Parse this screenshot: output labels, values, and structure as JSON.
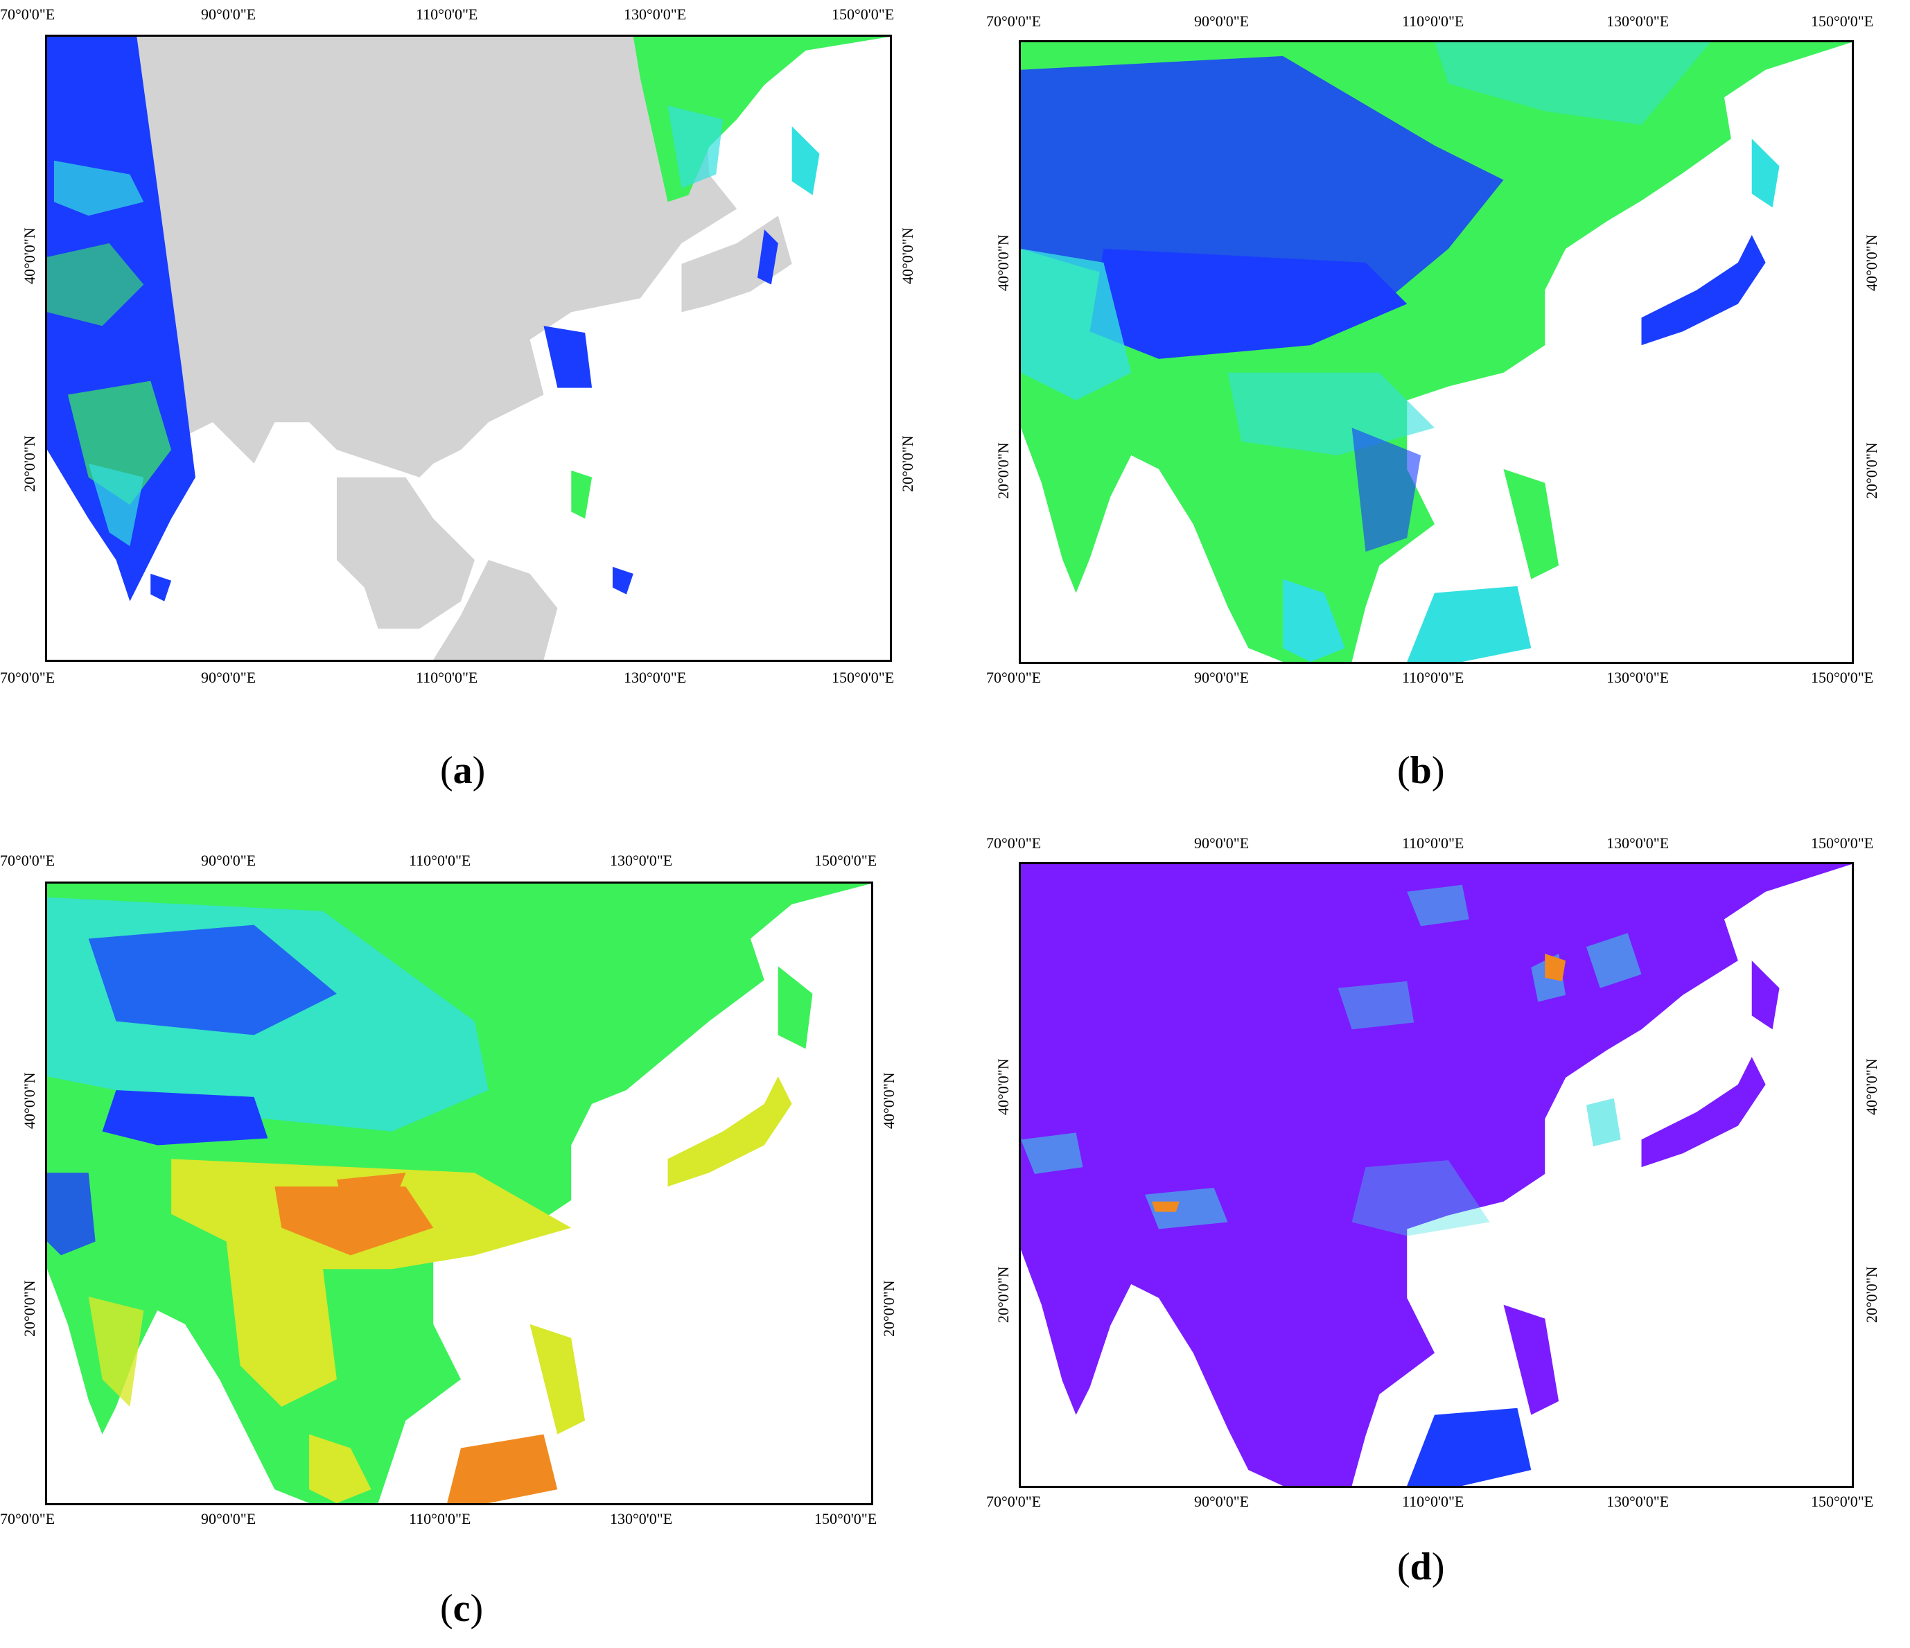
{
  "figure": {
    "panels": [
      {
        "id": "a",
        "caption_letter": "a",
        "palette": "panel-a"
      },
      {
        "id": "b",
        "caption_letter": "b",
        "palette": "panel-b"
      },
      {
        "id": "c",
        "caption_letter": "c",
        "palette": "panel-c"
      },
      {
        "id": "d",
        "caption_letter": "d",
        "palette": "panel-d"
      }
    ],
    "axes": {
      "lon_labels": [
        "70°0'0\"E",
        "90°0'0\"E",
        "110°0'0\"E",
        "130°0'0\"E",
        "150°0'0\"E"
      ],
      "lat_labels": [
        "40°0'0\"N",
        "20°0'0\"N"
      ]
    },
    "colors": {
      "land_gray": "#d3d3d3",
      "blue": "#1a3cff",
      "cyan": "#33e0e0",
      "green": "#3cf05a",
      "yellow": "#d8e82a",
      "orange": "#f08a20",
      "purple": "#7a1cff"
    }
  }
}
